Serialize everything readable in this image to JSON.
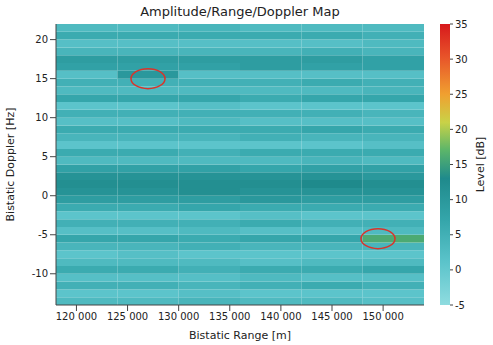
{
  "chart_data": {
    "type": "heatmap",
    "title": "Amplitude/Range/Doppler Map",
    "x_label": "Bistatic Range [m]",
    "y_label": "Bistatic Doppler [Hz]",
    "xlim": [
      118000,
      154000
    ],
    "ylim": [
      -14,
      22
    ],
    "xticks": [
      {
        "value": 120000,
        "label": "120 000"
      },
      {
        "value": 125000,
        "label": "125 000"
      },
      {
        "value": 130000,
        "label": "130 000"
      },
      {
        "value": 135000,
        "label": "135 000"
      },
      {
        "value": 140000,
        "label": "140 000"
      },
      {
        "value": 145000,
        "label": "145 000"
      },
      {
        "value": 150000,
        "label": "150 000"
      }
    ],
    "yticks": [
      -10,
      -5,
      0,
      5,
      10,
      15,
      20
    ],
    "grid": false,
    "cells": {
      "range_edges": [
        118000,
        124000,
        130000,
        136000,
        142000,
        148000,
        154000
      ],
      "doppler_edges": [
        -14,
        -13,
        -12,
        -11,
        -10,
        -9,
        -8,
        -7,
        -6,
        -5,
        -4,
        -3,
        -2,
        -1,
        0,
        1,
        2,
        3,
        4,
        5,
        6,
        7,
        8,
        9,
        10,
        11,
        12,
        13,
        14,
        15,
        16,
        17,
        18,
        19,
        20,
        21,
        22
      ],
      "values": [
        [
          3,
          3,
          4,
          3,
          3,
          2
        ],
        [
          1,
          1,
          2,
          1,
          1,
          1
        ],
        [
          5,
          5,
          4,
          5,
          6,
          5
        ],
        [
          2,
          2,
          2,
          3,
          2,
          2
        ],
        [
          6,
          6,
          5,
          6,
          6,
          7
        ],
        [
          3,
          3,
          3,
          2,
          3,
          3
        ],
        [
          1,
          2,
          1,
          1,
          1,
          1
        ],
        [
          4,
          4,
          5,
          4,
          4,
          4
        ],
        [
          7,
          7,
          6,
          7,
          7,
          16
        ],
        [
          2,
          2,
          3,
          2,
          2,
          3
        ],
        [
          5,
          5,
          5,
          6,
          5,
          5
        ],
        [
          1,
          1,
          1,
          2,
          1,
          1
        ],
        [
          6,
          6,
          7,
          6,
          6,
          6
        ],
        [
          9,
          9,
          9,
          10,
          9,
          9
        ],
        [
          11,
          11,
          12,
          11,
          11,
          11
        ],
        [
          12,
          12,
          12,
          12,
          13,
          12
        ],
        [
          11,
          11,
          11,
          11,
          11,
          10
        ],
        [
          8,
          8,
          8,
          7,
          8,
          8
        ],
        [
          3,
          3,
          3,
          3,
          4,
          3
        ],
        [
          6,
          6,
          5,
          6,
          6,
          6
        ],
        [
          1,
          1,
          1,
          1,
          1,
          2
        ],
        [
          4,
          4,
          4,
          5,
          4,
          4
        ],
        [
          6,
          6,
          6,
          6,
          7,
          6
        ],
        [
          2,
          2,
          3,
          2,
          2,
          2
        ],
        [
          5,
          5,
          5,
          5,
          5,
          4
        ],
        [
          1,
          1,
          2,
          1,
          1,
          1
        ],
        [
          7,
          7,
          7,
          6,
          7,
          7
        ],
        [
          3,
          3,
          3,
          3,
          3,
          4
        ],
        [
          5,
          5,
          5,
          5,
          6,
          5
        ],
        [
          2,
          10,
          2,
          2,
          2,
          2
        ],
        [
          8,
          8,
          8,
          9,
          8,
          8
        ],
        [
          9,
          9,
          9,
          9,
          9,
          8
        ],
        [
          4,
          4,
          4,
          4,
          5,
          4
        ],
        [
          2,
          2,
          2,
          2,
          2,
          3
        ],
        [
          6,
          6,
          6,
          6,
          6,
          5
        ],
        [
          3,
          3,
          4,
          3,
          3,
          3
        ]
      ]
    },
    "colorbar": {
      "label": "Level [dB]",
      "range": [
        -5,
        35
      ],
      "ticks": [
        -5,
        0,
        5,
        10,
        15,
        20,
        25,
        30,
        35
      ]
    },
    "circled": [
      {
        "x": 127000,
        "y": 15
      },
      {
        "x": 149500,
        "y": -5.5
      }
    ]
  }
}
